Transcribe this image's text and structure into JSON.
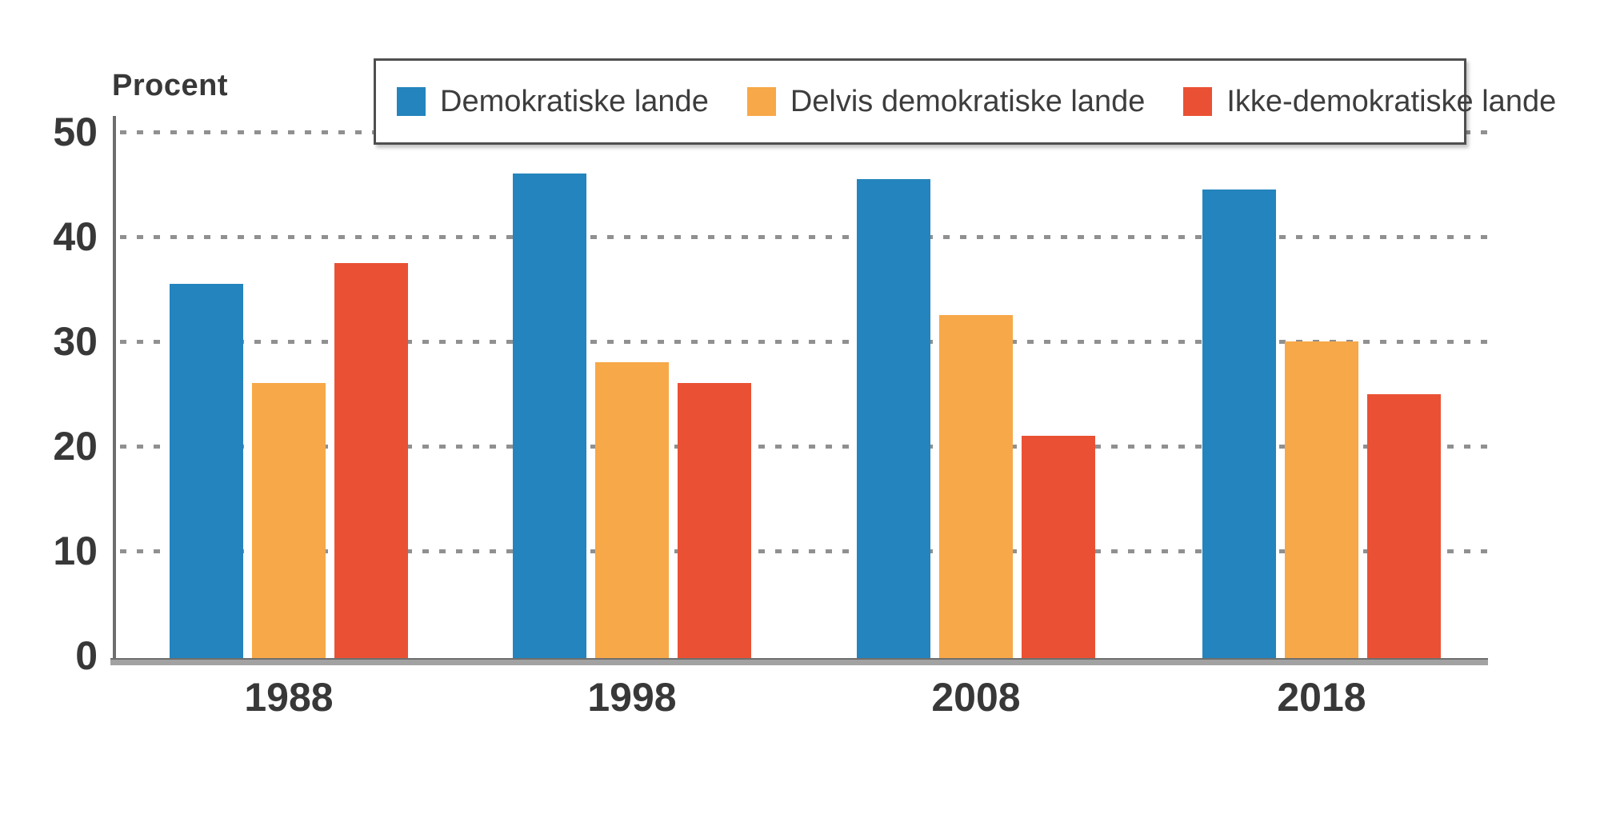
{
  "chart_data": {
    "type": "bar",
    "title": "",
    "ylabel": "Procent",
    "xlabel": "",
    "categories": [
      "1988",
      "1998",
      "2008",
      "2018"
    ],
    "series": [
      {
        "name": "Demokratiske lande",
        "color": "#2484bd",
        "values": [
          35.5,
          46,
          45.5,
          44.5
        ]
      },
      {
        "name": "Delvis demokratiske lande",
        "color": "#f7a848",
        "values": [
          26,
          28,
          32.5,
          30
        ]
      },
      {
        "name": "Ikke-demokratiske lande",
        "color": "#ea5134",
        "values": [
          37.5,
          26,
          21,
          25
        ]
      }
    ],
    "ylim": [
      0,
      50
    ],
    "yticks": [
      0,
      10,
      20,
      30,
      40,
      50
    ],
    "grid": "horizontal-dotted",
    "legend_position": "top"
  },
  "colors": {
    "background": "#ffffff",
    "axis_line": "#6e6e6e",
    "axis_band": "#a2a2a2",
    "gridline": "#7d7d7d",
    "text": "#383838",
    "legend_border": "#4f4f4f"
  }
}
